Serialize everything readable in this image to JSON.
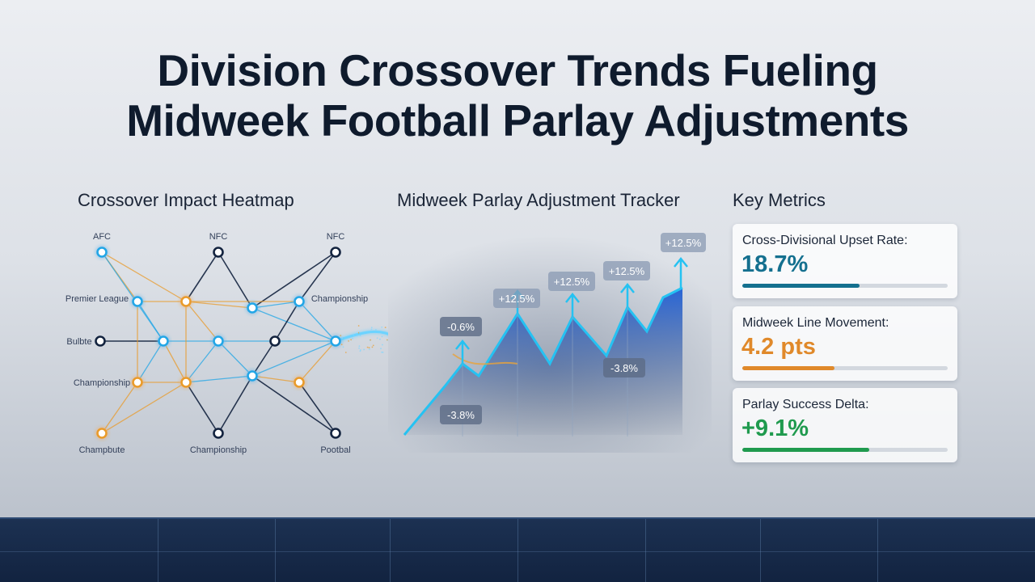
{
  "title": {
    "line1": "Division Crossover Trends Fueling",
    "line2": "Midweek Football Parlay Adjustments"
  },
  "heatmap": {
    "title": "Crossover Impact Heatmap",
    "labels": [
      "AFC",
      "NFC",
      "NFC",
      "Premier League",
      "Championship",
      "Bulbte",
      "Championship",
      "Champbute",
      "Championship",
      "Pootbal"
    ]
  },
  "tracker": {
    "title": "Midweek Parlay Adjustment Tracker",
    "tags": [
      "+12.5%",
      "+12.5%",
      "+12.5%",
      "+12.5%",
      "-0.6%",
      "-3.8%",
      "-3.8%"
    ]
  },
  "metrics": {
    "title": "Key Metrics",
    "cards": [
      {
        "label": "Cross-Divisional Upset Rate:",
        "value": "18.7%",
        "color": "#14708f",
        "fraction": 0.57
      },
      {
        "label": "Midweek Line Movement:",
        "value": "4.2 pts",
        "color": "#e0892a",
        "fraction": 0.45
      },
      {
        "label": "Parlay Success Delta:",
        "value": "+9.1%",
        "color": "#1f9a4e",
        "fraction": 0.62
      }
    ]
  },
  "colors": {
    "accent_blue": "#21a6e6",
    "accent_orange": "#e99b2b",
    "dark_navy": "#13233f"
  }
}
